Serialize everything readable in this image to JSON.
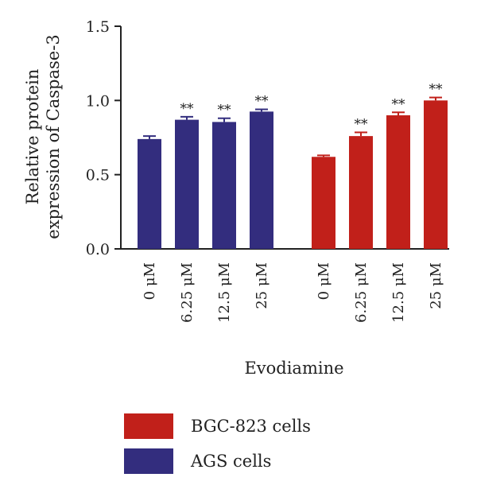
{
  "chart_data": {
    "type": "bar",
    "xlabel": "Evodiamine",
    "ylabel_lines": [
      "Relative protein",
      "expression of Caspase-3"
    ],
    "ylim": [
      0,
      1.5
    ],
    "yticks": [
      "0.0",
      "0.5",
      "1.0",
      "1.5"
    ],
    "series": [
      {
        "name": "AGS cells",
        "color": "#332d7e",
        "categories": [
          "0 μM",
          "6.25 μM",
          "12.5 μM",
          "25 μM"
        ],
        "values": [
          0.74,
          0.87,
          0.855,
          0.925
        ],
        "errors": [
          0.02,
          0.02,
          0.025,
          0.015
        ],
        "significance": [
          "",
          "**",
          "**",
          "**"
        ]
      },
      {
        "name": "BGC-823 cells",
        "color": "#c1201a",
        "categories": [
          "0 μM",
          "6.25 μM",
          "12.5 μM",
          "25 μM"
        ],
        "values": [
          0.62,
          0.76,
          0.9,
          1.0
        ],
        "errors": [
          0.01,
          0.025,
          0.02,
          0.02
        ],
        "significance": [
          "",
          "**",
          "**",
          "**"
        ]
      }
    ],
    "legend": [
      {
        "label": "BGC-823 cells",
        "color": "#c1201a"
      },
      {
        "label": "AGS cells",
        "color": "#332d7e"
      }
    ]
  }
}
